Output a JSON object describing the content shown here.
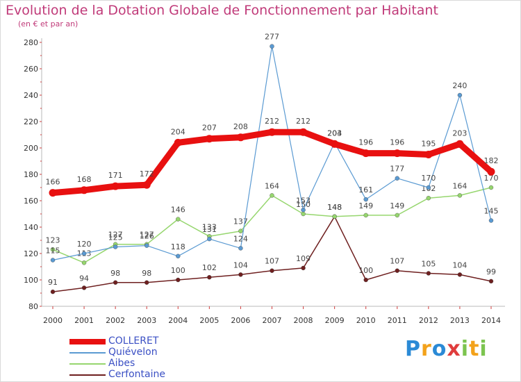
{
  "chart_data": {
    "type": "line",
    "title": "Evolution de la Dotation Globale de Fonctionnement par Habitant",
    "subtitle": "(en € et par an)",
    "xlabel": "",
    "ylabel": "",
    "categories": [
      "2000",
      "2001",
      "2002",
      "2003",
      "2004",
      "2005",
      "2006",
      "2007",
      "2008",
      "2009",
      "2010",
      "2011",
      "2012",
      "2013",
      "2014"
    ],
    "ylim": [
      80,
      280
    ],
    "yticks": [
      80,
      100,
      120,
      140,
      160,
      180,
      200,
      220,
      240,
      260,
      280
    ],
    "grid": false,
    "legend_position": "bottom-left",
    "series": [
      {
        "name": "Cerfontaine",
        "color": "#6e1f1f",
        "values": [
          91,
          94,
          98,
          98,
          100,
          102,
          104,
          107,
          109,
          148,
          100,
          107,
          105,
          104,
          99
        ]
      },
      {
        "name": "Aibes",
        "color": "#96d66e",
        "values": [
          123,
          113,
          127,
          127,
          146,
          133,
          137,
          164,
          150,
          148,
          149,
          149,
          162,
          164,
          170
        ]
      },
      {
        "name": "Quiévelon",
        "color": "#5a9ad2",
        "values": [
          115,
          120,
          125,
          126,
          118,
          131,
          124,
          277,
          153,
          204,
          161,
          177,
          170,
          240,
          145
        ]
      },
      {
        "name": "COLLERET",
        "color": "#e81010",
        "values": [
          166,
          168,
          171,
          172,
          204,
          207,
          208,
          212,
          212,
          203,
          196,
          196,
          195,
          203,
          182
        ]
      }
    ],
    "legend_order": [
      "COLLERET",
      "Quiévelon",
      "Aibes",
      "Cerfontaine"
    ]
  },
  "branding": {
    "logo_text": [
      "P",
      "r",
      "o",
      "x",
      "i",
      "t",
      "i"
    ]
  }
}
